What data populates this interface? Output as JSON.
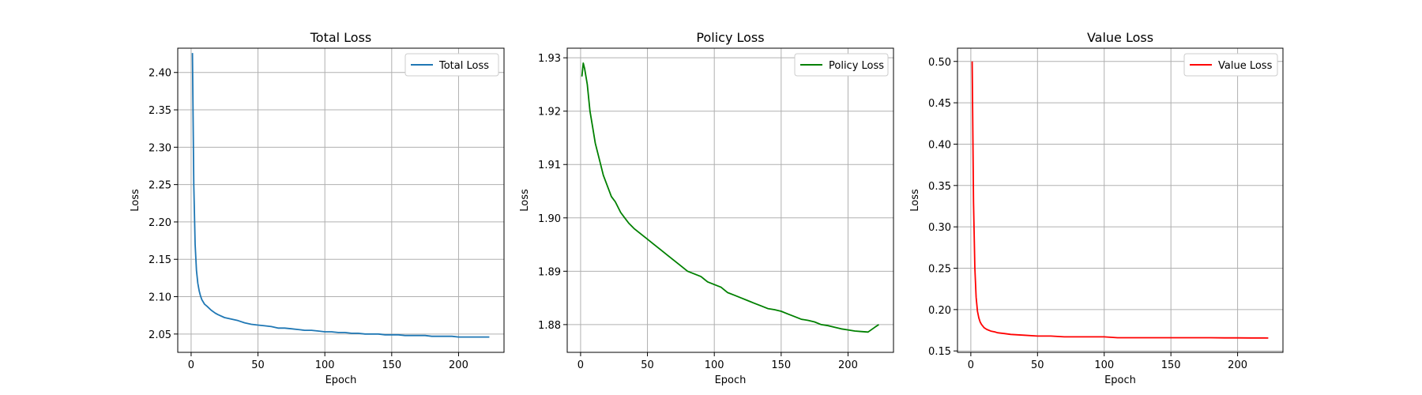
{
  "chart_data": [
    {
      "type": "line",
      "title": "Total Loss",
      "xlabel": "Epoch",
      "ylabel": "Loss",
      "xlim": [
        -10,
        234
      ],
      "ylim": [
        2.0255,
        2.4325
      ],
      "xticks": [
        "0",
        "50",
        "100",
        "150",
        "200"
      ],
      "yticks": [
        "2.05",
        "2.10",
        "2.15",
        "2.20",
        "2.25",
        "2.30",
        "2.35",
        "2.40"
      ],
      "grid": true,
      "legend_position": "upper-right",
      "colors": {
        "series": "#1f77b4"
      },
      "series": [
        {
          "name": "Total Loss",
          "x": [
            1,
            2,
            3,
            4,
            5,
            6,
            7,
            8,
            10,
            12,
            15,
            18,
            20,
            25,
            30,
            35,
            40,
            45,
            50,
            55,
            60,
            65,
            70,
            75,
            80,
            85,
            90,
            95,
            100,
            105,
            110,
            115,
            120,
            125,
            130,
            135,
            140,
            145,
            150,
            155,
            160,
            165,
            170,
            175,
            180,
            185,
            190,
            195,
            200,
            205,
            210,
            215,
            220,
            223
          ],
          "y": [
            2.426,
            2.25,
            2.17,
            2.135,
            2.118,
            2.108,
            2.101,
            2.096,
            2.09,
            2.087,
            2.082,
            2.078,
            2.076,
            2.072,
            2.07,
            2.068,
            2.065,
            2.063,
            2.062,
            2.061,
            2.06,
            2.058,
            2.058,
            2.057,
            2.056,
            2.055,
            2.055,
            2.054,
            2.053,
            2.053,
            2.052,
            2.052,
            2.051,
            2.051,
            2.05,
            2.05,
            2.05,
            2.049,
            2.049,
            2.049,
            2.048,
            2.048,
            2.048,
            2.048,
            2.047,
            2.047,
            2.047,
            2.047,
            2.046,
            2.046,
            2.046,
            2.046,
            2.046,
            2.046
          ]
        }
      ]
    },
    {
      "type": "line",
      "title": "Policy Loss",
      "xlabel": "Epoch",
      "ylabel": "Loss",
      "xlim": [
        -10,
        234
      ],
      "ylim": [
        1.8748,
        1.9318
      ],
      "xticks": [
        "0",
        "50",
        "100",
        "150",
        "200"
      ],
      "yticks": [
        "1.88",
        "1.89",
        "1.90",
        "1.91",
        "1.92",
        "1.93"
      ],
      "grid": true,
      "legend_position": "upper-right",
      "colors": {
        "series": "#008000"
      },
      "series": [
        {
          "name": "Policy Loss",
          "x": [
            1,
            2,
            3,
            5,
            7,
            9,
            11,
            13,
            15,
            17,
            20,
            23,
            26,
            30,
            33,
            36,
            40,
            45,
            50,
            55,
            60,
            65,
            70,
            75,
            80,
            85,
            90,
            95,
            100,
            105,
            110,
            115,
            120,
            125,
            130,
            135,
            140,
            145,
            150,
            155,
            160,
            165,
            170,
            175,
            180,
            185,
            190,
            195,
            200,
            205,
            210,
            215,
            220,
            223
          ],
          "y": [
            1.9265,
            1.929,
            1.928,
            1.925,
            1.92,
            1.917,
            1.914,
            1.912,
            1.91,
            1.908,
            1.906,
            1.904,
            1.903,
            1.901,
            1.9,
            1.899,
            1.898,
            1.897,
            1.896,
            1.895,
            1.894,
            1.893,
            1.892,
            1.891,
            1.89,
            1.8895,
            1.889,
            1.888,
            1.8875,
            1.887,
            1.886,
            1.8855,
            1.885,
            1.8845,
            1.884,
            1.8835,
            1.883,
            1.8828,
            1.8825,
            1.882,
            1.8815,
            1.881,
            1.8808,
            1.8805,
            1.88,
            1.8798,
            1.8795,
            1.8792,
            1.879,
            1.8788,
            1.8787,
            1.8786,
            1.8795,
            1.88
          ]
        }
      ]
    },
    {
      "type": "line",
      "title": "Value Loss",
      "xlabel": "Epoch",
      "ylabel": "Loss",
      "xlim": [
        -10,
        234
      ],
      "ylim": [
        0.1483,
        0.516
      ],
      "xticks": [
        "0",
        "50",
        "100",
        "150",
        "200"
      ],
      "yticks": [
        "0.15",
        "0.20",
        "0.25",
        "0.30",
        "0.35",
        "0.40",
        "0.45",
        "0.50"
      ],
      "grid": true,
      "legend_position": "upper-right",
      "colors": {
        "series": "#ff0000"
      },
      "series": [
        {
          "name": "Value Loss",
          "x": [
            1,
            2,
            3,
            4,
            5,
            6,
            7,
            8,
            10,
            12,
            15,
            18,
            20,
            25,
            30,
            40,
            50,
            60,
            70,
            80,
            90,
            100,
            110,
            120,
            130,
            140,
            150,
            160,
            170,
            180,
            190,
            200,
            210,
            220,
            223
          ],
          "y": [
            0.5,
            0.33,
            0.25,
            0.215,
            0.198,
            0.19,
            0.185,
            0.182,
            0.178,
            0.176,
            0.174,
            0.173,
            0.172,
            0.171,
            0.17,
            0.169,
            0.168,
            0.168,
            0.167,
            0.167,
            0.167,
            0.167,
            0.166,
            0.166,
            0.166,
            0.166,
            0.166,
            0.166,
            0.166,
            0.166,
            0.1658,
            0.1658,
            0.1657,
            0.1657,
            0.1656
          ]
        }
      ]
    }
  ]
}
